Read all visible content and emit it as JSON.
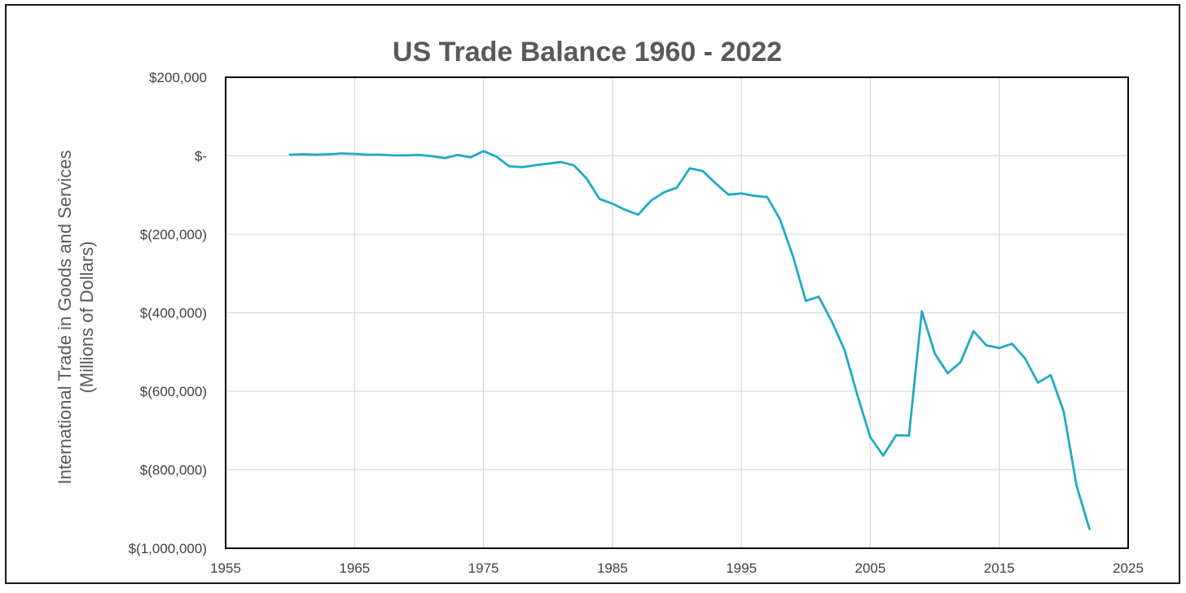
{
  "chart_data": {
    "type": "line",
    "title": "US Trade Balance 1960 - 2022",
    "ylabel_lines": [
      "International Trade in Goods and Services",
      "(Millions of Dollars)"
    ],
    "xlabel": "",
    "xlim": [
      1955,
      2025
    ],
    "ylim": [
      -1000000,
      200000
    ],
    "x_ticks": [
      1955,
      1965,
      1975,
      1985,
      1995,
      2005,
      2015,
      2025
    ],
    "x_tick_labels": [
      "1955",
      "1965",
      "1975",
      "1985",
      "1995",
      "2005",
      "2015",
      "2025"
    ],
    "y_ticks": [
      200000,
      0,
      -200000,
      -400000,
      -600000,
      -800000,
      -1000000
    ],
    "y_tick_labels": [
      "$200,000",
      "$-",
      "$(200,000)",
      "$(400,000)",
      "$(600,000)",
      "$(800,000)",
      "$(1,000,000)"
    ],
    "grid": true,
    "legend": false,
    "series": [
      {
        "color": "#22a9c4",
        "x": [
          1960,
          1961,
          1962,
          1963,
          1964,
          1965,
          1966,
          1967,
          1968,
          1969,
          1970,
          1971,
          1972,
          1973,
          1974,
          1975,
          1976,
          1977,
          1978,
          1979,
          1980,
          1981,
          1982,
          1983,
          1984,
          1985,
          1986,
          1987,
          1988,
          1989,
          1990,
          1991,
          1992,
          1993,
          1994,
          1995,
          1996,
          1997,
          1998,
          1999,
          2000,
          2001,
          2002,
          2003,
          2004,
          2005,
          2006,
          2007,
          2008,
          2009,
          2010,
          2011,
          2012,
          2013,
          2014,
          2015,
          2016,
          2017,
          2018,
          2019,
          2020,
          2021,
          2022
        ],
        "values": [
          3000,
          4000,
          3000,
          4000,
          6000,
          5000,
          3000,
          3000,
          1000,
          1000,
          2000,
          -1000,
          -6000,
          2000,
          -4000,
          12000,
          -2000,
          -27000,
          -29000,
          -24000,
          -20000,
          -16000,
          -24000,
          -58000,
          -110000,
          -122000,
          -138000,
          -150000,
          -114000,
          -93000,
          -81000,
          -32000,
          -39000,
          -70000,
          -99000,
          -96000,
          -102000,
          -105000,
          -162000,
          -256000,
          -370000,
          -359000,
          -421000,
          -495000,
          -610000,
          -717000,
          -764000,
          -712000,
          -713000,
          -396000,
          -504000,
          -554000,
          -526000,
          -447000,
          -483000,
          -490000,
          -479000,
          -516000,
          -578000,
          -559000,
          -652000,
          -841000,
          -951000
        ]
      }
    ]
  }
}
